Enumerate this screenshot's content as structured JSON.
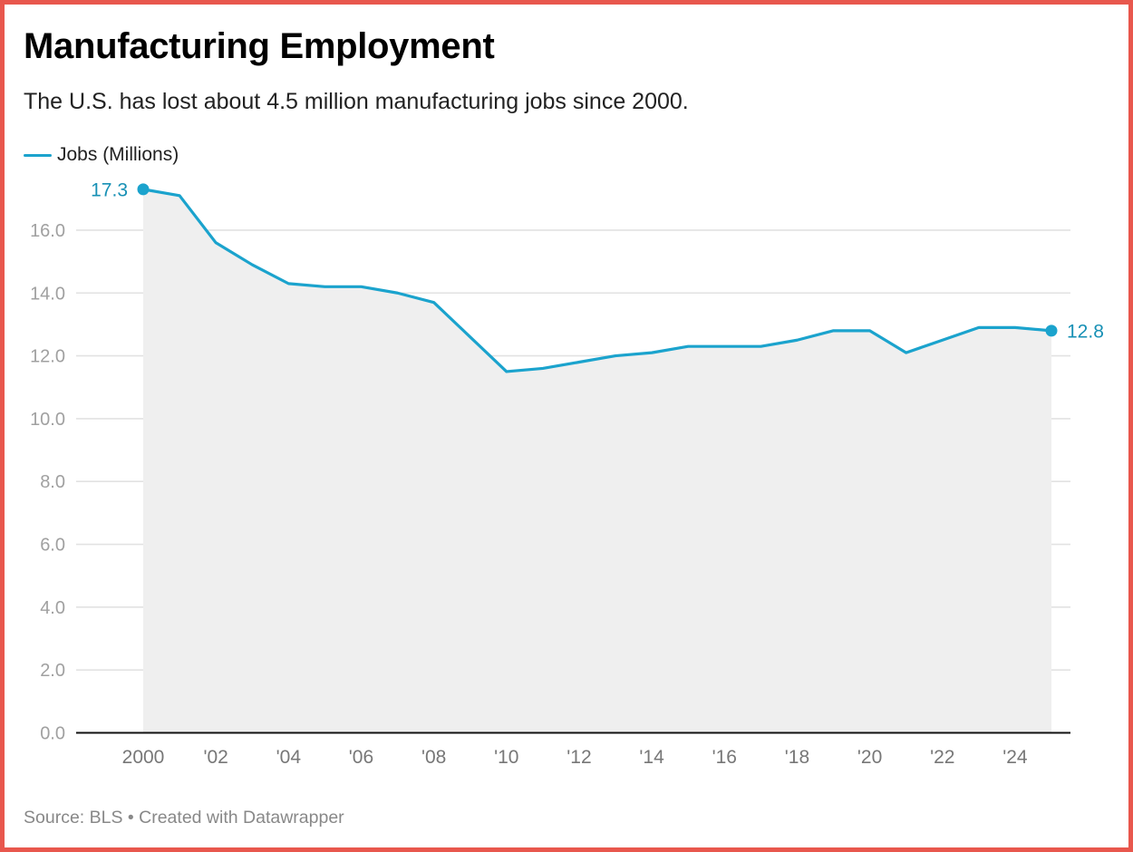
{
  "header": {
    "title": "Manufacturing Employment",
    "subtitle": "The U.S. has lost about 4.5 million manufacturing jobs since 2000."
  },
  "legend": {
    "items": [
      {
        "label": "Jobs (Millions)",
        "color": "#1ba3cd"
      }
    ]
  },
  "footer": {
    "source": "Source: BLS • Created with Datawrapper"
  },
  "colors": {
    "line": "#1ba3cd",
    "label": "#1790b5",
    "area": "#efefef",
    "grid": "#e2e2e2",
    "baseline": "#111111",
    "border": "#e8574d"
  },
  "chart_data": {
    "type": "area",
    "title": "Manufacturing Employment",
    "subtitle": "The U.S. has lost about 4.5 million manufacturing jobs since 2000.",
    "xlabel": "",
    "ylabel": "",
    "legend_position": "top-left",
    "grid": true,
    "ylim": [
      0,
      16
    ],
    "yticks": [
      0,
      2,
      4,
      6,
      8,
      10,
      12,
      14,
      16
    ],
    "ytick_labels": [
      "0.0",
      "2.0",
      "4.0",
      "6.0",
      "8.0",
      "10.0",
      "12.0",
      "14.0",
      "16.0"
    ],
    "xlim": [
      2000,
      2025
    ],
    "xticks": [
      2000,
      2002,
      2004,
      2006,
      2008,
      2010,
      2012,
      2014,
      2016,
      2018,
      2020,
      2022,
      2024
    ],
    "xtick_labels": [
      "2000",
      "'02",
      "'04",
      "'06",
      "'08",
      "'10",
      "'12",
      "'14",
      "'16",
      "'18",
      "'20",
      "'22",
      "'24"
    ],
    "series": [
      {
        "name": "Jobs (Millions)",
        "x": [
          2000,
          2001,
          2002,
          2003,
          2004,
          2005,
          2006,
          2007,
          2008,
          2009,
          2010,
          2011,
          2012,
          2013,
          2014,
          2015,
          2016,
          2017,
          2018,
          2019,
          2020,
          2021,
          2022,
          2023,
          2024,
          2025
        ],
        "values": [
          17.3,
          17.1,
          15.6,
          14.9,
          14.3,
          14.2,
          14.2,
          14.0,
          13.7,
          12.6,
          11.5,
          11.6,
          11.8,
          12.0,
          12.1,
          12.3,
          12.3,
          12.3,
          12.5,
          12.8,
          12.8,
          12.1,
          12.5,
          12.9,
          12.9,
          12.8
        ]
      }
    ],
    "annotations": [
      {
        "x": 2000,
        "value": 17.3,
        "label": "17.3",
        "side": "left"
      },
      {
        "x": 2025,
        "value": 12.8,
        "label": "12.8",
        "side": "right"
      }
    ]
  }
}
